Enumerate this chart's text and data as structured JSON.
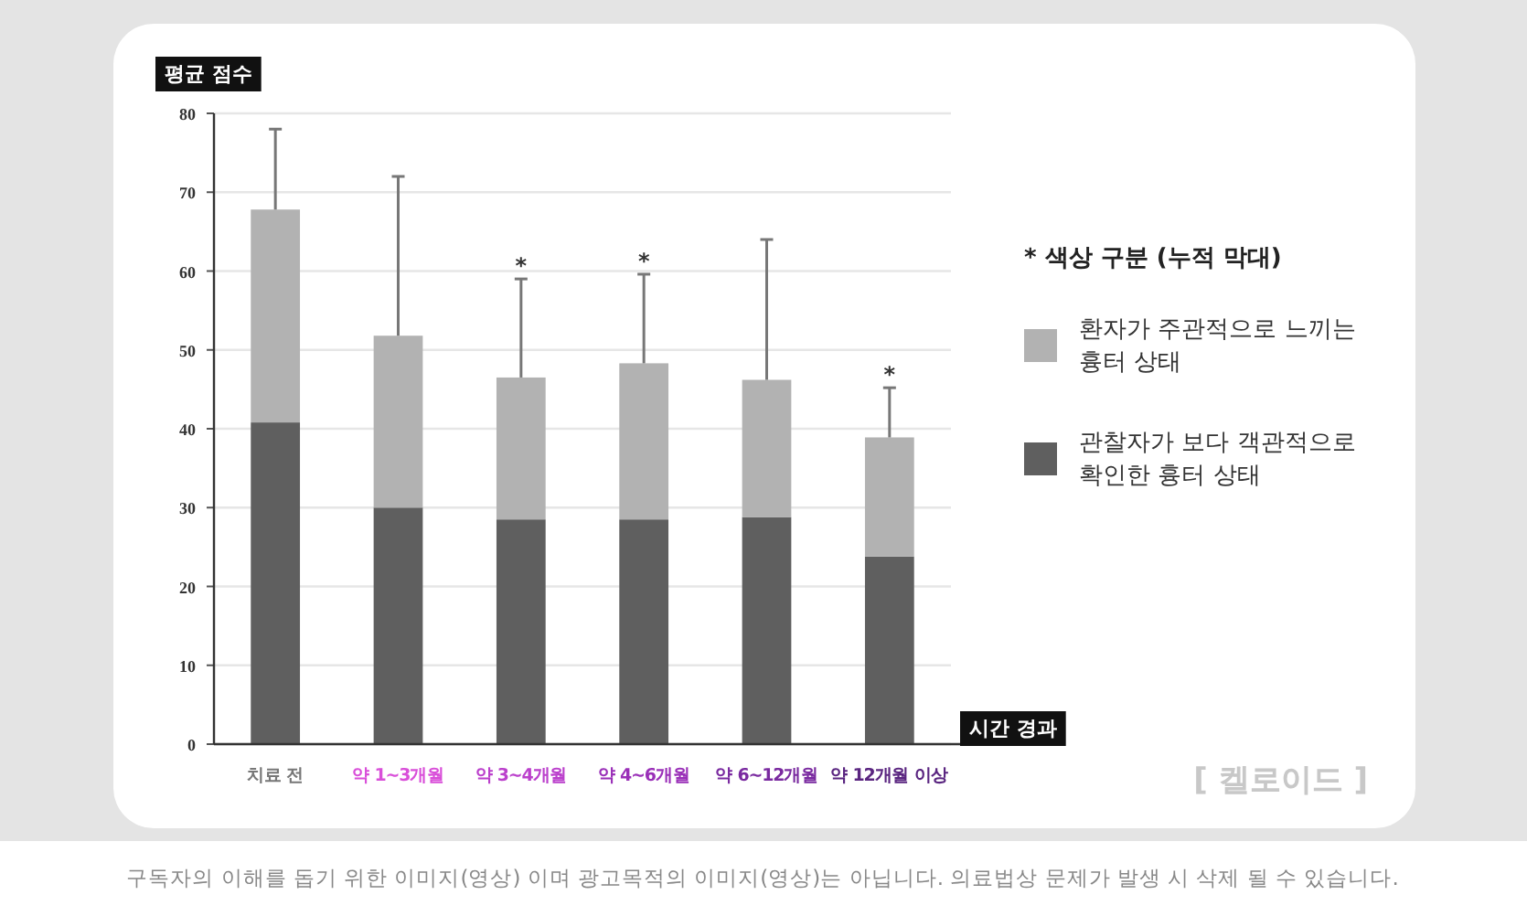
{
  "chart_data": {
    "type": "bar",
    "stacked": true,
    "ylabel": "평균 점수",
    "xlabel": "시간 경과",
    "legend_title": "* 색상 구분 (누적 막대)",
    "legend": "right",
    "categories": [
      "치료 전",
      "약 1~3개월",
      "약 3~4개월",
      "약 4~6개월",
      "약 6~12개월",
      "약 12개월 이상"
    ],
    "series": [
      {
        "name": "관찰자가 보다 객관적으로 확인한 흉터 상태",
        "color": "#5f5f5f",
        "values": [
          40.8,
          30,
          28.5,
          28.5,
          28.8,
          23.8
        ]
      },
      {
        "name": "환자가 주관적으로 느끼는 흉터 상태",
        "color": "#b2b2b2",
        "values": [
          27,
          21.8,
          18,
          19.8,
          17.4,
          15.1
        ],
        "errors": [
          [
            67.8,
            78
          ],
          [
            51.8,
            72
          ],
          [
            46.5,
            59
          ],
          [
            48.3,
            59.6
          ],
          [
            46.2,
            64
          ],
          [
            38.9,
            45.2
          ]
        ]
      }
    ],
    "ylim": [
      0,
      80
    ],
    "yticks": [
      0,
      10,
      20,
      30,
      40,
      50,
      60,
      70,
      80
    ],
    "grid": "y",
    "annotations": [
      {
        "text": "*",
        "x": "약 3~4개월",
        "y": 59
      },
      {
        "text": "*",
        "x": "약 4~6개월",
        "y": 59.6
      },
      {
        "text": "*",
        "x": "약 12개월 이상",
        "y": 45.2
      },
      "[ 켈로이드 ]",
      "구독자의 이해를 돕기 위한 이미지(영상) 이며 광고목적의 이미지(영상)는 아닙니다. 의료법상 문제가 발생 시 삭제 될 수 있습니다."
    ]
  }
}
